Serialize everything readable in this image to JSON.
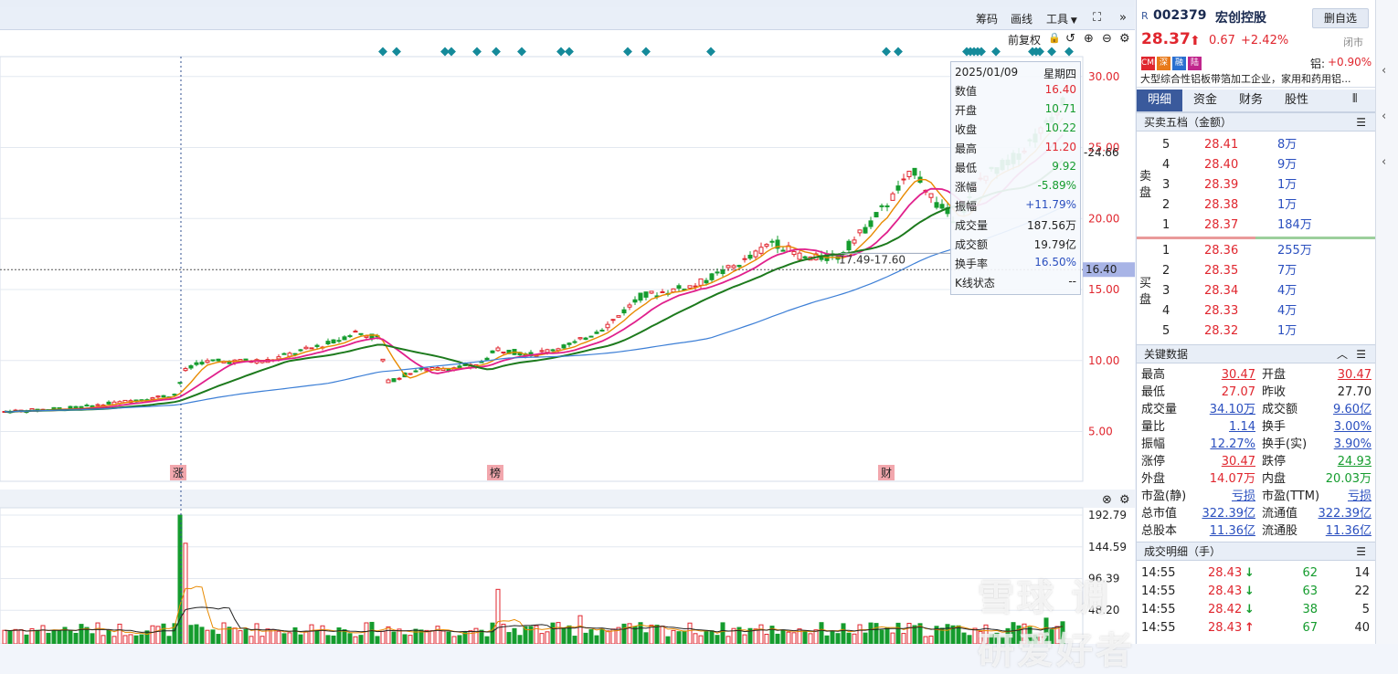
{
  "toolbar": {
    "chips_label": "筹码",
    "draw_label": "画线",
    "tools_label": "工具",
    "adjust_label": "前复权"
  },
  "main_axis": {
    "ticks": [
      "30.00",
      "25.00",
      "20.00",
      "15.00",
      "10.00",
      "5.00"
    ],
    "last_price_tag": "24.66",
    "cursor_price_tag": "16.40",
    "range_note": "17.49-17.60",
    "marks": [
      "涨",
      "榜",
      "财"
    ]
  },
  "vol_axis": {
    "ticks": [
      "192.79",
      "144.59",
      "96.39",
      "48.20"
    ]
  },
  "tooltip": {
    "date": "2025/01/09",
    "weekday": "星期四",
    "rows": [
      {
        "k": "数值",
        "v": "16.40",
        "c": "red"
      },
      {
        "k": "开盘",
        "v": "10.71",
        "c": "green"
      },
      {
        "k": "收盘",
        "v": "10.22",
        "c": "green"
      },
      {
        "k": "最高",
        "v": "11.20",
        "c": "red"
      },
      {
        "k": "最低",
        "v": "9.92",
        "c": "green"
      },
      {
        "k": "涨幅",
        "v": "-5.89%",
        "c": "green"
      },
      {
        "k": "振幅",
        "v": "+11.79%",
        "c": "blue"
      },
      {
        "k": "成交量",
        "v": "187.56万",
        "c": "dark"
      },
      {
        "k": "成交额",
        "v": "19.79亿",
        "c": "dark"
      },
      {
        "k": "换手率",
        "v": "16.50%",
        "c": "blue"
      },
      {
        "k": "K线状态",
        "v": "--",
        "c": "dark"
      }
    ]
  },
  "quote": {
    "r_mark": "R",
    "code": "002379",
    "name": "宏创控股",
    "price": "28.37",
    "change": "0.67",
    "pct": "+2.42%",
    "status": "闭市",
    "fav_button": "删自选",
    "tags": [
      "CMI",
      "深",
      "融",
      "陆"
    ],
    "sector_label": "铝:",
    "sector_pct": "+0.90%",
    "description": "大型综合性铝板带箔加工企业，家用和药用铝..."
  },
  "tabs": [
    "明细",
    "资金",
    "财务",
    "股性"
  ],
  "order_book": {
    "title": "买卖五档（金额）",
    "sell_label": "卖盘",
    "buy_label": "买盘",
    "asks": [
      {
        "n": "5",
        "p": "28.41",
        "v": "8万"
      },
      {
        "n": "4",
        "p": "28.40",
        "v": "9万"
      },
      {
        "n": "3",
        "p": "28.39",
        "v": "1万"
      },
      {
        "n": "2",
        "p": "28.38",
        "v": "1万"
      },
      {
        "n": "1",
        "p": "28.37",
        "v": "184万"
      }
    ],
    "bids": [
      {
        "n": "1",
        "p": "28.36",
        "v": "255万"
      },
      {
        "n": "2",
        "p": "28.35",
        "v": "7万"
      },
      {
        "n": "3",
        "p": "28.34",
        "v": "4万"
      },
      {
        "n": "4",
        "p": "28.33",
        "v": "4万"
      },
      {
        "n": "5",
        "p": "28.32",
        "v": "1万"
      }
    ]
  },
  "key_data": {
    "title": "关键数据",
    "left": [
      {
        "k": "最高",
        "v": "30.47",
        "c": "red u"
      },
      {
        "k": "最低",
        "v": "27.07",
        "c": "red"
      },
      {
        "k": "成交量",
        "v": "34.10万",
        "c": "blue"
      },
      {
        "k": "量比",
        "v": "1.14",
        "c": "blue"
      },
      {
        "k": "振幅",
        "v": "12.27%",
        "c": "blue"
      },
      {
        "k": "涨停",
        "v": "30.47",
        "c": "red u"
      },
      {
        "k": "外盘",
        "v": "14.07万",
        "c": "red"
      },
      {
        "k": "市盈(静)",
        "v": "亏损",
        "c": "blue"
      },
      {
        "k": "总市值",
        "v": "322.39亿",
        "c": "blue"
      },
      {
        "k": "总股本",
        "v": "11.36亿",
        "c": "blue"
      }
    ],
    "right": [
      {
        "k": "开盘",
        "v": "30.47",
        "c": "red u"
      },
      {
        "k": "昨收",
        "v": "27.70",
        "c": "dark"
      },
      {
        "k": "成交额",
        "v": "9.60亿",
        "c": "blue"
      },
      {
        "k": "换手",
        "v": "3.00%",
        "c": "blue"
      },
      {
        "k": "换手(实)",
        "v": "3.90%",
        "c": "blue"
      },
      {
        "k": "跌停",
        "v": "24.93",
        "c": "green u"
      },
      {
        "k": "内盘",
        "v": "20.03万",
        "c": "green"
      },
      {
        "k": "市盈(TTM)",
        "v": "亏损",
        "c": "blue"
      },
      {
        "k": "流通值",
        "v": "322.39亿",
        "c": "blue"
      },
      {
        "k": "流通股",
        "v": "11.36亿",
        "c": "blue"
      }
    ]
  },
  "trades": {
    "title": "成交明细（手）",
    "rows": [
      {
        "t": "14:55",
        "p": "28.43",
        "d": "down",
        "v": "62",
        "n": "14"
      },
      {
        "t": "14:55",
        "p": "28.43",
        "d": "down",
        "v": "63",
        "n": "22"
      },
      {
        "t": "14:55",
        "p": "28.42",
        "d": "down",
        "v": "38",
        "n": "5"
      },
      {
        "t": "14:55",
        "p": "28.43",
        "d": "up",
        "v": "67",
        "n": "40"
      }
    ]
  },
  "watermark": "雪球 调研爱好者",
  "colors": {
    "up": "#e0262e",
    "down": "#159c2e",
    "ma5": "#e88a00",
    "ma10": "#e0208c",
    "ma20": "#1d7a1d",
    "ma60": "#3d7fd6",
    "marker": "#148a9a"
  }
}
